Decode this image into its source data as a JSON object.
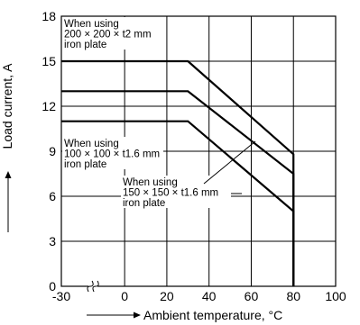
{
  "chart_data": {
    "type": "line",
    "title": "",
    "xlabel": "Ambient temperature, °C",
    "ylabel": "Load current, A",
    "xlim": [
      -30,
      100
    ],
    "ylim": [
      0,
      18
    ],
    "x_ticks": [
      -30,
      0,
      20,
      40,
      60,
      80,
      100
    ],
    "x_tick_labels": [
      "-30",
      "0",
      "20",
      "40",
      "60",
      "80",
      "100"
    ],
    "y_ticks": [
      0,
      3,
      6,
      9,
      12,
      15,
      18
    ],
    "y_tick_labels": [
      "0",
      "3",
      "6",
      "9",
      "12",
      "15",
      "18"
    ],
    "axis_break": true,
    "grid": true,
    "series": [
      {
        "x": [
          -30,
          30,
          80,
          80
        ],
        "y": [
          15,
          15,
          8.8,
          0
        ]
      },
      {
        "x": [
          -30,
          30,
          80,
          80
        ],
        "y": [
          13,
          13,
          7.5,
          0
        ]
      },
      {
        "x": [
          -30,
          30,
          80,
          80
        ],
        "y": [
          11,
          11,
          5.0,
          0
        ]
      }
    ],
    "annotations": [
      {
        "lines": [
          "When using",
          "200 × 200 × t2 mm",
          "iron plate"
        ]
      },
      {
        "lines": [
          "When using",
          "100 × 100 × t1.6 mm",
          "iron plate"
        ]
      },
      {
        "lines": [
          "When using",
          "150 × 150 × t1.6 mm",
          "iron plate"
        ]
      }
    ]
  }
}
